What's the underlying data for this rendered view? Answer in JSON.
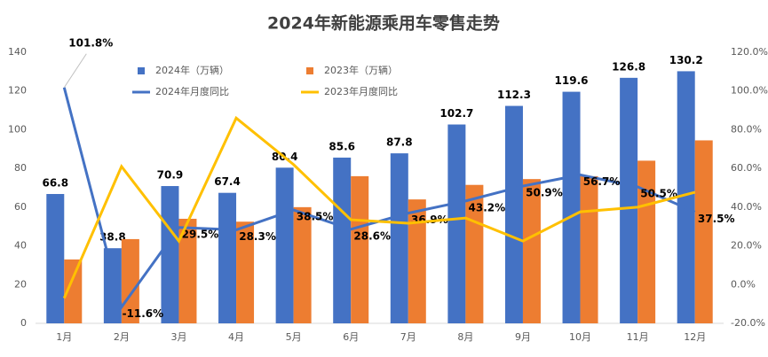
{
  "chart_data": {
    "type": "bar",
    "title": "2024年新能源乘用车零售走势",
    "categories": [
      "1月",
      "2月",
      "3月",
      "4月",
      "5月",
      "6月",
      "7月",
      "8月",
      "9月",
      "10月",
      "11月",
      "12月"
    ],
    "series": [
      {
        "name": "2024年（万辆）",
        "type": "bar",
        "color": "#4472c4",
        "values": [
          66.8,
          38.8,
          70.9,
          67.4,
          80.4,
          85.6,
          87.8,
          102.7,
          112.3,
          119.6,
          126.8,
          130.2
        ]
      },
      {
        "name": "2023年（万辆）",
        "type": "bar",
        "color": "#ed7d31",
        "values": [
          33,
          43.5,
          54,
          52.5,
          60,
          76,
          64,
          71.5,
          74.5,
          76,
          84,
          94.5
        ]
      },
      {
        "name": "2024年月度同比",
        "type": "line",
        "axis": "y2",
        "color": "#4472c4",
        "values": [
          101.8,
          -11.6,
          29.5,
          28.3,
          38.5,
          28.6,
          36.9,
          43.2,
          50.9,
          56.7,
          50.5,
          37.5
        ],
        "value_labels": [
          "101.8%",
          "-11.6%",
          "29.5%",
          "28.3%",
          "38.5%",
          "28.6%",
          "36.9%",
          "43.2%",
          "50.9%",
          "56.7%",
          "50.5%",
          "37.5%"
        ]
      },
      {
        "name": "2023年月度同比",
        "type": "line",
        "axis": "y2",
        "color": "#ffc000",
        "values": [
          -7,
          61,
          22.5,
          86,
          62,
          33.5,
          31.7,
          34.4,
          22.5,
          37.6,
          40,
          47.7
        ]
      }
    ],
    "ylim": [
      0,
      140
    ],
    "yticks": [
      0,
      20,
      40,
      60,
      80,
      100,
      120,
      140
    ],
    "y2lim": [
      -20,
      120
    ],
    "y2ticks": [
      {
        "value": -20,
        "label": "-20.0%"
      },
      {
        "value": 0,
        "label": "0.0%"
      },
      {
        "value": 20,
        "label": "20.0%"
      },
      {
        "value": 40,
        "label": "40.0%"
      },
      {
        "value": 60,
        "label": "60.0%"
      },
      {
        "value": 80,
        "label": "80.0%"
      },
      {
        "value": 100,
        "label": "100.0%"
      },
      {
        "value": 120,
        "label": "120.0%"
      }
    ],
    "grid": false,
    "legend": "top"
  }
}
